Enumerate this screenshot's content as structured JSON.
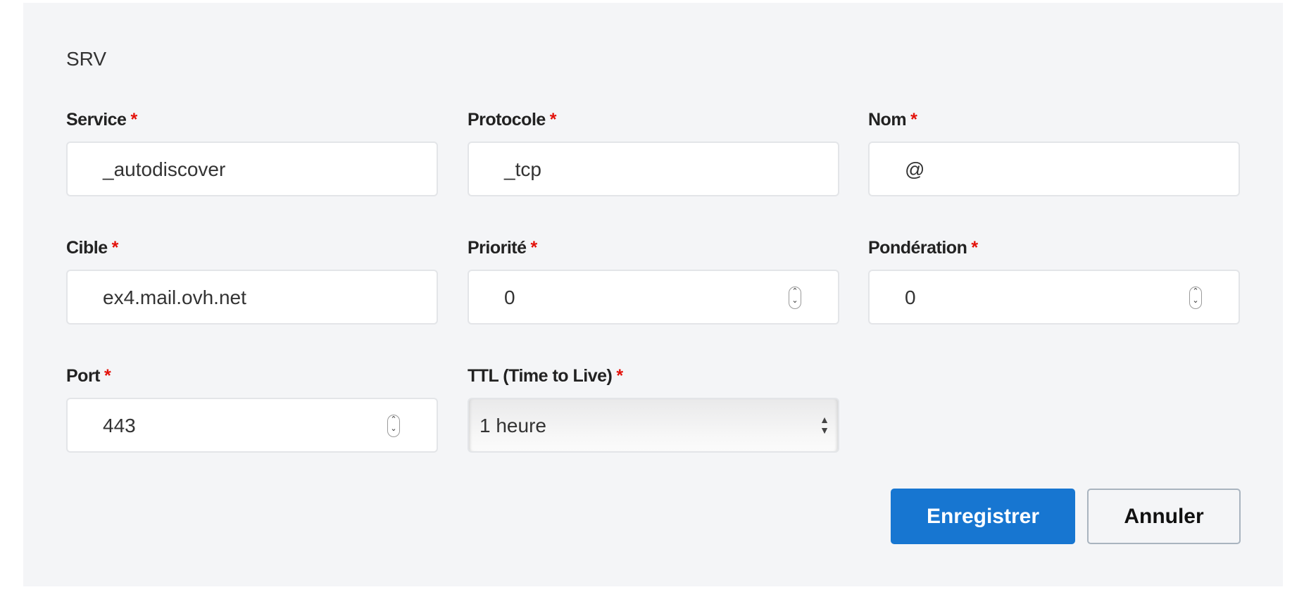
{
  "form": {
    "title": "SRV",
    "required_mark": "*",
    "fields": {
      "service": {
        "label": "Service",
        "value": "_autodiscover"
      },
      "protocole": {
        "label": "Protocole",
        "value": "_tcp"
      },
      "nom": {
        "label": "Nom",
        "value": "@"
      },
      "cible": {
        "label": "Cible",
        "value": "ex4.mail.ovh.net"
      },
      "priorite": {
        "label": "Priorité",
        "value": "0"
      },
      "ponderation": {
        "label": "Pondération",
        "value": "0"
      },
      "port": {
        "label": "Port",
        "value": "443"
      },
      "ttl": {
        "label": "TTL (Time to Live)",
        "value": "1 heure"
      }
    },
    "buttons": {
      "save": "Enregistrer",
      "cancel": "Annuler"
    },
    "colors": {
      "primary": "#1776d1",
      "required": "#e3120b",
      "background": "#f4f5f7"
    }
  }
}
